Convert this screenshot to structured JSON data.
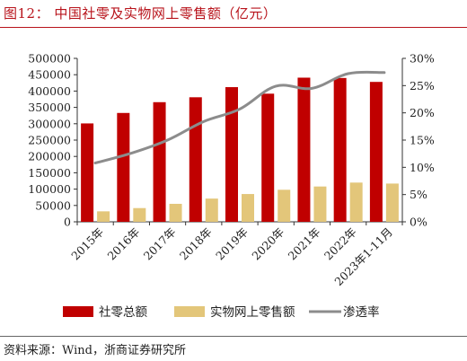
{
  "figure": {
    "title": "图12：  中国社零及实物网上零售额（亿元）",
    "source": "资料来源：Wind，浙商证券研究所"
  },
  "colors": {
    "accent": "#b8131b",
    "bar_total": "#c00000",
    "bar_online": "#e3c67a",
    "line_rate": "#8c8c8c"
  },
  "chart_data": {
    "type": "bar",
    "categories": [
      "2015年",
      "2016年",
      "2017年",
      "2018年",
      "2019年",
      "2020年",
      "2021年",
      "2022年",
      "2023年1-11月"
    ],
    "series": [
      {
        "name": "社零总额",
        "kind": "bar",
        "axis": "left",
        "values": [
          301000,
          333000,
          366000,
          381000,
          412000,
          392000,
          441000,
          440000,
          428000
        ]
      },
      {
        "name": "实物网上零售额",
        "kind": "bar",
        "axis": "left",
        "values": [
          32000,
          42000,
          55000,
          71000,
          85000,
          98000,
          108000,
          120000,
          117000
        ]
      },
      {
        "name": "渗透率",
        "kind": "line",
        "axis": "right",
        "values": [
          0.108,
          0.126,
          0.15,
          0.184,
          0.207,
          0.249,
          0.245,
          0.272,
          0.274
        ]
      }
    ],
    "yleft": {
      "ticks": [
        "0",
        "50000",
        "100000",
        "150000",
        "200000",
        "250000",
        "300000",
        "350000",
        "400000",
        "450000",
        "500000"
      ],
      "lim": [
        0,
        500000
      ]
    },
    "yright": {
      "ticks": [
        "0%",
        "5%",
        "10%",
        "15%",
        "20%",
        "25%",
        "30%"
      ],
      "lim": [
        0,
        0.3
      ]
    },
    "grid": false,
    "legend_position": "bottom"
  }
}
